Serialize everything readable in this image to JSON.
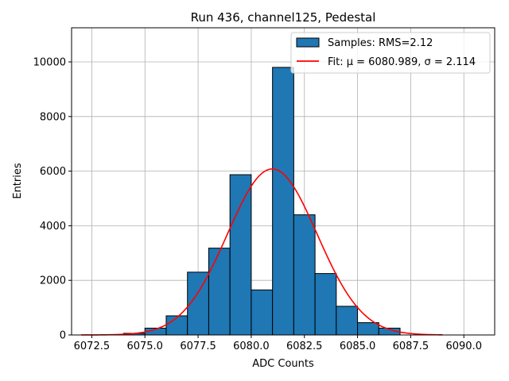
{
  "chart_data": {
    "type": "bar",
    "title": "Run 436, channel125, Pedestal",
    "xlabel": "ADC Counts",
    "ylabel": "Entries",
    "xlim": [
      6071.55,
      6091.45
    ],
    "ylim": [
      0,
      11250
    ],
    "grid": true,
    "legend_position": "top-right",
    "x_ticks": [
      6072.5,
      6075.0,
      6077.5,
      6080.0,
      6082.5,
      6085.0,
      6087.5,
      6090.0
    ],
    "y_ticks": [
      0,
      2000,
      4000,
      6000,
      8000,
      10000
    ],
    "histogram": {
      "name": "Samples: RMS=2.12",
      "color": "#1f77b4",
      "bins": [
        {
          "left": 6074,
          "right": 6075,
          "count": 60
        },
        {
          "left": 6075,
          "right": 6076,
          "count": 250
        },
        {
          "left": 6076,
          "right": 6077,
          "count": 700
        },
        {
          "left": 6077,
          "right": 6078,
          "count": 2300
        },
        {
          "left": 6078,
          "right": 6079,
          "count": 3180
        },
        {
          "left": 6079,
          "right": 6080,
          "count": 5870
        },
        {
          "left": 6080,
          "right": 6081,
          "count": 1650
        },
        {
          "left": 6081,
          "right": 6082,
          "count": 9800
        },
        {
          "left": 6082,
          "right": 6083,
          "count": 4400
        },
        {
          "left": 6083,
          "right": 6084,
          "count": 2250
        },
        {
          "left": 6084,
          "right": 6085,
          "count": 1050
        },
        {
          "left": 6085,
          "right": 6086,
          "count": 450
        },
        {
          "left": 6086,
          "right": 6087,
          "count": 250
        }
      ]
    },
    "fit": {
      "name": "Fit: μ = 6080.989, σ = 2.114",
      "color": "#ff0000",
      "mu": 6080.989,
      "sigma": 2.114,
      "amplitude": 6080,
      "x_range": [
        6072,
        6089
      ]
    }
  }
}
